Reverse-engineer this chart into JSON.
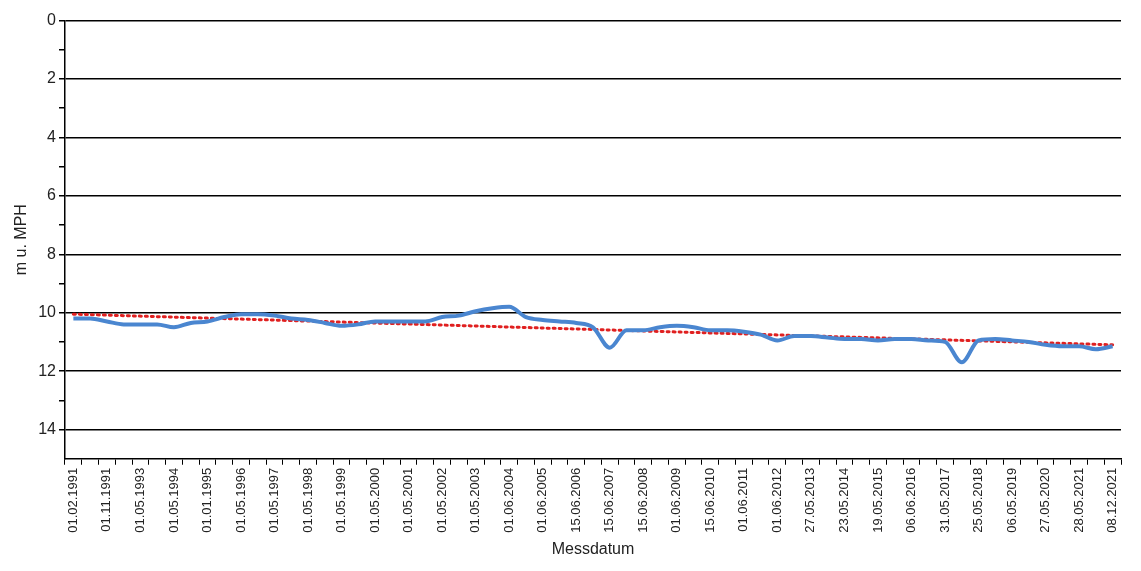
{
  "chart_data": {
    "type": "line",
    "xlabel": "Messdatum",
    "ylabel": "m u. MPH",
    "categories": [
      "01.02.1991",
      null,
      "01.11.1991",
      null,
      "01.05.1993",
      null,
      "01.05.1994",
      null,
      "01.01.1995",
      null,
      "01.05.1996",
      null,
      "01.05.1997",
      null,
      "01.05.1998",
      null,
      "01.05.1999",
      null,
      "01.05.2000",
      null,
      "01.05.2001",
      null,
      "01.05.2002",
      null,
      "01.05.2003",
      null,
      "01.06.2004",
      null,
      "01.06.2005",
      null,
      "15.06.2006",
      null,
      "15.06.2007",
      null,
      "15.06.2008",
      null,
      "01.06.2009",
      null,
      "15.06.2010",
      null,
      "01.06.2011",
      null,
      "01.06.2012",
      null,
      "27.05.2013",
      null,
      "23.05.2014",
      null,
      "19.05.2015",
      null,
      "06.06.2016",
      null,
      "31.05.2017",
      null,
      "25.05.2018",
      null,
      "06.05.2019",
      null,
      "27.05.2020",
      null,
      "28.05.2021",
      null,
      "08.12.2021"
    ],
    "series": [
      {
        "color": "#4a86d0",
        "line_style": "solid",
        "values": [
          10.2,
          10.2,
          10.3,
          10.4,
          10.4,
          10.4,
          10.5,
          10.35,
          10.3,
          10.15,
          10.05,
          10.05,
          10.1,
          10.2,
          10.25,
          10.35,
          10.45,
          10.4,
          10.3,
          10.3,
          10.3,
          10.3,
          10.15,
          10.1,
          9.95,
          9.85,
          9.8,
          10.15,
          10.25,
          10.3,
          10.35,
          10.5,
          11.2,
          10.6,
          10.6,
          10.5,
          10.45,
          10.5,
          10.6,
          10.6,
          10.65,
          10.75,
          10.95,
          10.8,
          10.8,
          10.85,
          10.9,
          10.9,
          10.95,
          10.9,
          10.9,
          10.95,
          11.0,
          11.7,
          10.95,
          10.9,
          10.95,
          11.0,
          11.1,
          11.15,
          11.15,
          11.25,
          11.15
        ]
      },
      {
        "color": "#e02020",
        "line_style": "dotted",
        "x": [
          "01.02.1991",
          "08.12.2021"
        ],
        "values": [
          10.05,
          11.1
        ]
      }
    ],
    "ylim": [
      15,
      0
    ],
    "yticks": [
      0,
      {
        "value": 1,
        "label": null
      },
      2,
      {
        "value": 3,
        "label": null
      },
      4,
      {
        "value": 5,
        "label": null
      },
      6,
      {
        "value": 7,
        "label": null
      },
      8,
      {
        "value": 9,
        "label": null
      },
      10,
      {
        "value": 11,
        "label": null
      },
      12,
      {
        "value": 13,
        "label": null
      },
      14
    ],
    "grid": "y",
    "legend": false,
    "marker": "none"
  }
}
